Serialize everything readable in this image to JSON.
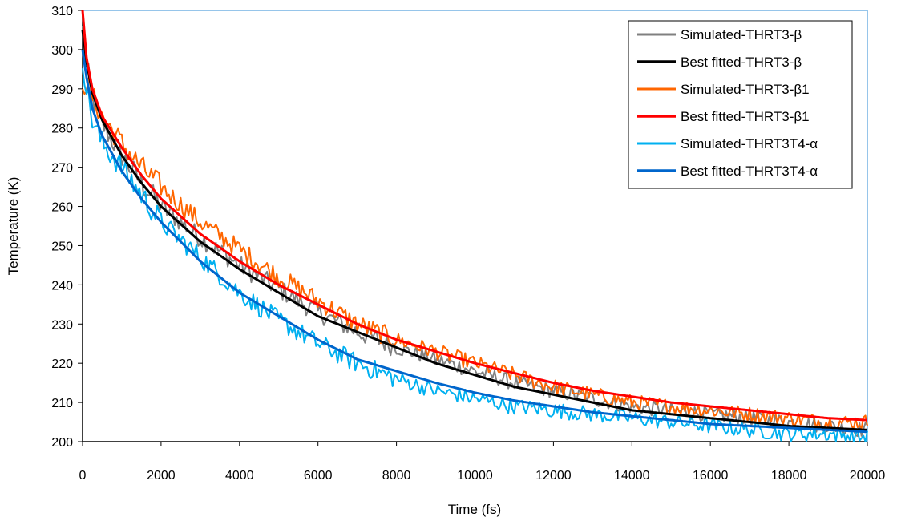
{
  "chart_data": {
    "type": "line",
    "title": "",
    "xlabel": "Time (fs)",
    "ylabel": "Temperature (K)",
    "xlim": [
      0,
      20000
    ],
    "ylim": [
      200,
      310
    ],
    "xticks": [
      "0",
      "2000",
      "4000",
      "6000",
      "8000",
      "10000",
      "12000",
      "14000",
      "16000",
      "18000",
      "20000"
    ],
    "yticks": [
      "200",
      "210",
      "220",
      "230",
      "240",
      "250",
      "260",
      "270",
      "280",
      "290",
      "300",
      "310"
    ],
    "grid": false,
    "legend_position": "top-right",
    "x_sample": [
      0,
      100,
      250,
      500,
      1000,
      1500,
      2000,
      3000,
      4000,
      5000,
      6000,
      7000,
      8000,
      9000,
      10000,
      11000,
      12000,
      13000,
      14000,
      15000,
      16000,
      17000,
      18000,
      19000,
      20000
    ],
    "series": [
      {
        "name": "Simulated-THRT3-β",
        "color": "#808080",
        "kind": "simulated",
        "values": [
          305,
          296,
          288,
          281,
          273,
          266,
          260,
          252,
          245,
          239,
          233,
          228,
          224,
          221,
          218,
          215,
          213,
          211,
          209,
          208,
          207,
          206,
          205,
          204,
          203
        ]
      },
      {
        "name": "Best fitted-THRT3-β",
        "color": "#000000",
        "kind": "fitted",
        "values": [
          305,
          297,
          289,
          282,
          273,
          266,
          260,
          251,
          244,
          238,
          232,
          228,
          224,
          220,
          217,
          214,
          212,
          210,
          208,
          207,
          206,
          205,
          204,
          203.5,
          203
        ]
      },
      {
        "name": "Simulated-THRT3-β1",
        "color": "#ff6600",
        "kind": "simulated",
        "values": [
          292,
          291,
          288,
          283,
          276,
          270,
          265,
          256,
          249,
          242,
          236,
          230,
          226,
          223,
          220,
          217,
          214,
          212,
          210,
          209,
          208,
          207,
          206,
          205,
          205
        ]
      },
      {
        "name": "Best fitted-THRT3-β1",
        "color": "#ff0000",
        "kind": "fitted",
        "values": [
          310,
          298,
          290,
          283,
          275,
          268,
          262,
          253,
          246,
          240,
          235,
          230,
          226,
          223,
          220,
          217.5,
          215,
          213,
          211.5,
          210,
          209,
          208,
          207,
          206,
          205.5
        ]
      },
      {
        "name": "Simulated-THRT3T4-α",
        "color": "#00b0f0",
        "kind": "simulated",
        "values": [
          298,
          290,
          282,
          276,
          270,
          263,
          256,
          247,
          238,
          231,
          225,
          220,
          216,
          213,
          211,
          209,
          208,
          207,
          206,
          205,
          204,
          203,
          202,
          202,
          201
        ]
      },
      {
        "name": "Best fitted-THRT3T4-α",
        "color": "#0066cc",
        "kind": "fitted",
        "values": [
          300,
          293,
          285,
          278,
          269,
          262,
          256,
          246,
          238,
          232,
          226,
          221,
          218,
          215,
          212.5,
          210.5,
          209,
          207.5,
          206.5,
          205.5,
          204.5,
          204,
          203.5,
          203,
          202.5
        ]
      }
    ]
  }
}
